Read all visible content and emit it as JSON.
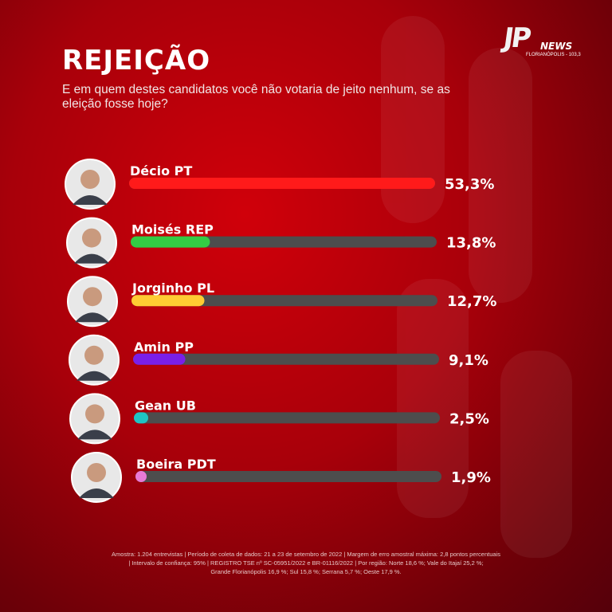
{
  "header": {
    "title": "REJEIÇÃO",
    "subtitle": "E em quem destes candidatos você não votaria de jeito nenhum, se as eleição fosse hoje?"
  },
  "logo": {
    "mark": "JP",
    "news": "NEWS",
    "city": "FLORIANÓPOLIS - 103,3"
  },
  "chart_data": {
    "type": "bar",
    "orientation": "horizontal",
    "categories": [
      "Décio PT",
      "Moisés REP",
      "Jorginho PL",
      "Amin PP",
      "Gean UB",
      "Boeira PDT"
    ],
    "values": [
      53.3,
      13.8,
      12.7,
      9.1,
      2.5,
      1.9
    ],
    "value_labels": [
      "53,3%",
      "13,8%",
      "12,7%",
      "9,1%",
      "2,5%",
      "1,9%"
    ],
    "colors": [
      "#ff1a1a",
      "#33cc44",
      "#ffcc33",
      "#7a1fe8",
      "#1fc4c4",
      "#e87ad6"
    ],
    "xlim": [
      0,
      53.3
    ],
    "track_color": "#4d4d4d",
    "grid": false,
    "legend": "none"
  },
  "footer": {
    "line1": "Amostra: 1.204 entrevistas | Período de coleta de dados: 21 a 23 de setembro de 2022 | Margem de erro amostral máxima: 2,8 pontos percentuais",
    "line2": "| Intervalo de confiança: 95% | REGISTRO TSE nº SC-05951/2022 e BR-01116/2022 | Por região: Norte 18,6 %; Vale do Itajaí 25,2 %;",
    "line3": "Grande Florianópolis 16,9 %; Sul 15,8 %; Serrana 5,7 %; Oeste 17,9 %."
  },
  "avatar_icon": "candidate-photo-icon"
}
